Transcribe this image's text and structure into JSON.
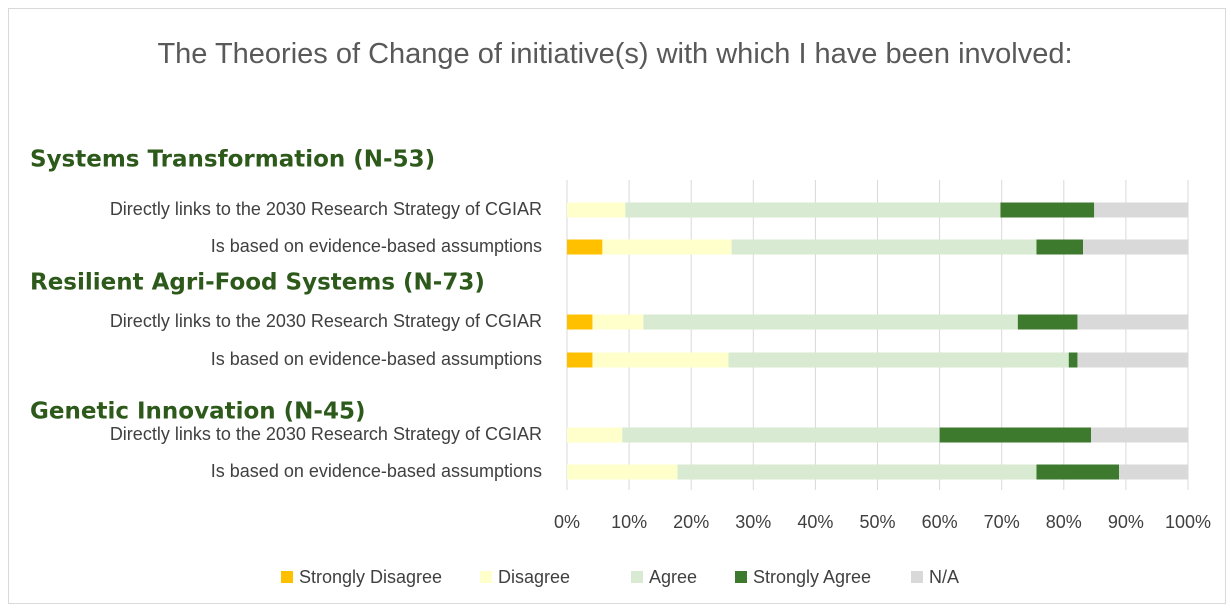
{
  "chart_data": {
    "type": "stacked-barh",
    "title": "The Theories of Change of initiative(s) with which I have been involved:",
    "groups": [
      {
        "name": "Systems Transformation (N-53)"
      },
      {
        "name": "Resilient Agri-Food Systems (N-73)"
      },
      {
        "name": "Genetic Innovation (N-45)"
      }
    ],
    "categories": [
      "Directly links to the 2030 Research Strategy of CGIAR",
      "Is based on evidence-based assumptions",
      "Directly links to the 2030 Research Strategy of CGIAR",
      "Is based on evidence-based assumptions",
      "Directly links to the 2030 Research Strategy of CGIAR",
      "Is based on evidence-based assumptions"
    ],
    "series": [
      {
        "name": "Strongly Disagree",
        "color": "#ffc000",
        "values": [
          0,
          5.7,
          4.1,
          4.1,
          0,
          0
        ]
      },
      {
        "name": "Disagree",
        "color": "#ffffcc",
        "values": [
          9.4,
          20.8,
          8.2,
          21.9,
          8.9,
          17.8
        ]
      },
      {
        "name": "Agree",
        "color": "#d8ead2",
        "values": [
          60.4,
          49.1,
          60.3,
          54.8,
          51.1,
          57.8
        ]
      },
      {
        "name": "Strongly Agree",
        "color": "#3d7a2e",
        "values": [
          15.1,
          7.5,
          9.6,
          1.4,
          24.4,
          13.3
        ]
      },
      {
        "name": "N/A",
        "color": "#d9d9d9",
        "values": [
          15.1,
          17.0,
          17.8,
          17.8,
          15.6,
          11.1
        ]
      }
    ],
    "xlim": [
      0,
      100
    ],
    "xticks": [
      {
        "value": 0,
        "label": "0%"
      },
      {
        "value": 10,
        "label": "10%"
      },
      {
        "value": 20,
        "label": "20%"
      },
      {
        "value": 30,
        "label": "30%"
      },
      {
        "value": 40,
        "label": "40%"
      },
      {
        "value": 50,
        "label": "50%"
      },
      {
        "value": 60,
        "label": "60%"
      },
      {
        "value": 70,
        "label": "70%"
      },
      {
        "value": 80,
        "label": "80%"
      },
      {
        "value": 90,
        "label": "90%"
      },
      {
        "value": 100,
        "label": "100%"
      }
    ],
    "grid": true,
    "legend": "bottom"
  }
}
